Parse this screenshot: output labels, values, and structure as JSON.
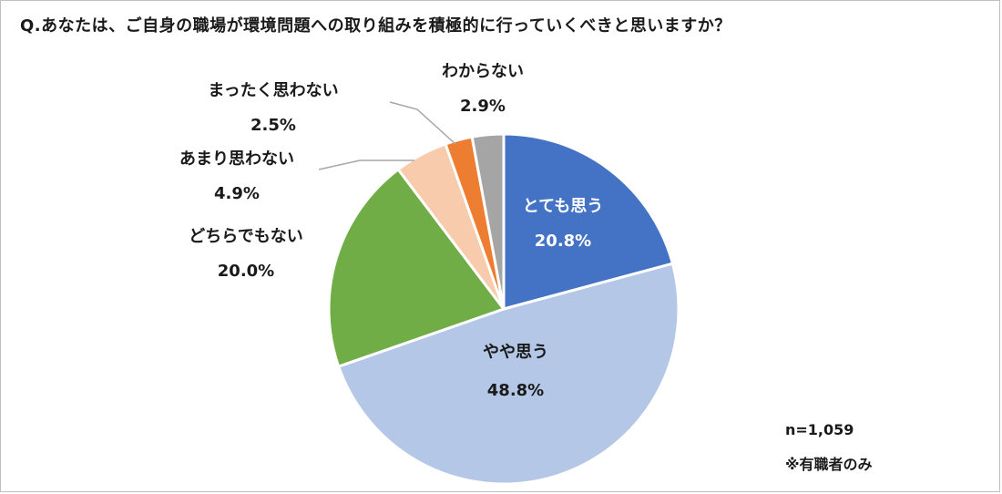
{
  "title": "Q.あなたは、ご自身の職場が環境問題への取り組みを積極的に行っていくべきと思いますか？",
  "notes": {
    "sample": "n=1,059",
    "scope": "※有職者のみ"
  },
  "chart_data": {
    "type": "pie",
    "start": "12 o'clock, clockwise",
    "slices": [
      {
        "label": "とても思う",
        "value": 20.8,
        "value_label": "20.8%",
        "color": "#4472c4",
        "text": "light"
      },
      {
        "label": "やや思う",
        "value": 48.8,
        "value_label": "48.8%",
        "color": "#b4c7e7",
        "text": "dark"
      },
      {
        "label": "どちらでもない",
        "value": 20.0,
        "value_label": "20.0%",
        "color": "#70ad47",
        "text": "dark"
      },
      {
        "label": "あまり思わない",
        "value": 4.9,
        "value_label": "4.9%",
        "color": "#f8cbad",
        "text": "dark"
      },
      {
        "label": "まったく思わない",
        "value": 2.5,
        "value_label": "2.5%",
        "color": "#ed7d31",
        "text": "dark"
      },
      {
        "label": "わからない",
        "value": 2.9,
        "value_label": "2.9%",
        "color": "#a5a5a5",
        "text": "dark"
      }
    ]
  }
}
